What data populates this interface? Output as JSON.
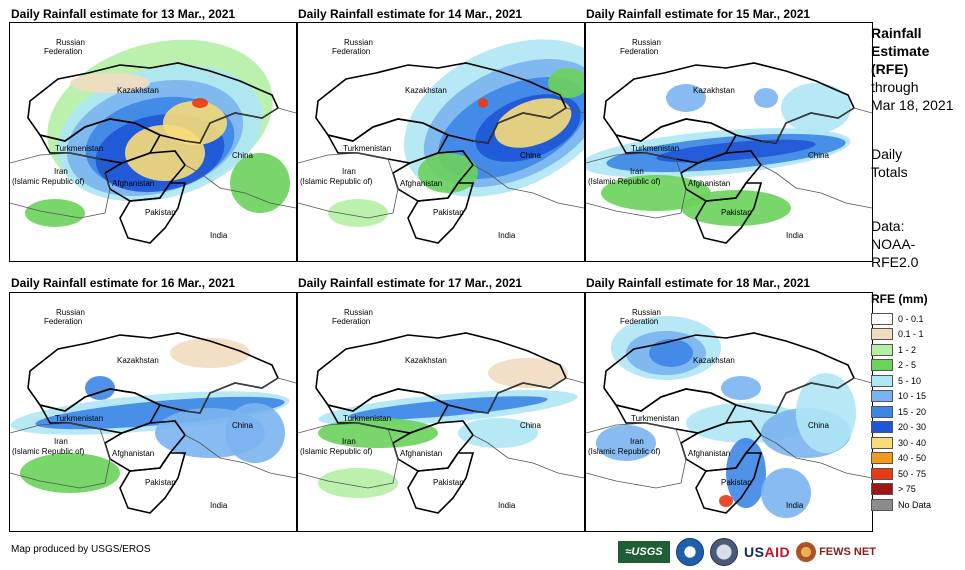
{
  "panels": [
    {
      "title": "Daily Rainfall estimate for 13 Mar., 2021"
    },
    {
      "title": "Daily Rainfall estimate for 14 Mar., 2021"
    },
    {
      "title": "Daily Rainfall estimate for 15 Mar., 2021"
    },
    {
      "title": "Daily Rainfall estimate for 16 Mar., 2021"
    },
    {
      "title": "Daily Rainfall estimate for 17 Mar., 2021"
    },
    {
      "title": "Daily Rainfall estimate for 18 Mar., 2021"
    }
  ],
  "map_labels": {
    "russia_1": "Russian",
    "russia_2": "Federation",
    "kazakhstan": "Kazakhstan",
    "turkmenistan": "Turkmenistan",
    "iran_1": "Iran",
    "iran_2": "(Islamic Republic of)",
    "afghanistan": "Afghanistan",
    "pakistan": "Pakistan",
    "china": "China",
    "india": "India"
  },
  "sidebar": {
    "heading_1": "Rainfall",
    "heading_2": "Estimate",
    "heading_3": "(RFE)",
    "through": "through",
    "date": "Mar 18, 2021",
    "daily": "Daily",
    "totals": "Totals",
    "data_label": "Data:",
    "data_src_1": "NOAA-",
    "data_src_2": "RFE2.0"
  },
  "legend": {
    "title": "RFE (mm)",
    "items": [
      {
        "label": "0 - 0.1",
        "color": "#ffffff"
      },
      {
        "label": "0.1 - 1",
        "color": "#f2dcc0"
      },
      {
        "label": "1 - 2",
        "color": "#b4f0a4"
      },
      {
        "label": "2 - 5",
        "color": "#6ad25a"
      },
      {
        "label": "5 - 10",
        "color": "#aee6f5"
      },
      {
        "label": "10 - 15",
        "color": "#7ab4f0"
      },
      {
        "label": "15 - 20",
        "color": "#3c86e6"
      },
      {
        "label": "20 - 30",
        "color": "#1f55d6"
      },
      {
        "label": "30 - 40",
        "color": "#f7dc78"
      },
      {
        "label": "40 - 50",
        "color": "#f29a1e"
      },
      {
        "label": "50 - 75",
        "color": "#e83a14"
      },
      {
        "label": "> 75",
        "color": "#a01414"
      },
      {
        "label": "No Data",
        "color": "#8c8c8c"
      }
    ]
  },
  "footer": {
    "credit": "Map produced by USGS/EROS",
    "logo_usgs": "≈USGS",
    "logo_usaid_1": "US",
    "logo_usaid_2": "AID",
    "logo_fews": "FEWS NET"
  }
}
